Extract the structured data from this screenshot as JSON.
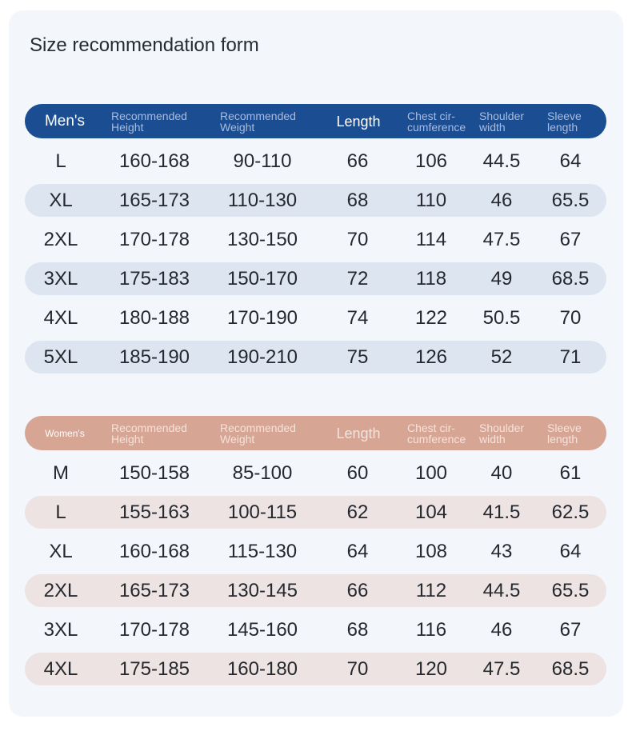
{
  "title": "Size recommendation form",
  "men": {
    "header": [
      "Men's",
      "Recommended Height",
      "Recommended Weight",
      "Length",
      "Chest cir-cumference",
      "Shoulder width",
      "Sleeve length"
    ],
    "rows": [
      [
        "L",
        "160-168",
        "90-110",
        "66",
        "106",
        "44.5",
        "64"
      ],
      [
        "XL",
        "165-173",
        "110-130",
        "68",
        "110",
        "46",
        "65.5"
      ],
      [
        "2XL",
        "170-178",
        "130-150",
        "70",
        "114",
        "47.5",
        "67"
      ],
      [
        "3XL",
        "175-183",
        "150-170",
        "72",
        "118",
        "49",
        "68.5"
      ],
      [
        "4XL",
        "180-188",
        "170-190",
        "74",
        "122",
        "50.5",
        "70"
      ],
      [
        "5XL",
        "185-190",
        "190-210",
        "75",
        "126",
        "52",
        "71"
      ]
    ]
  },
  "women": {
    "header": [
      "Women's",
      "Recommended Height",
      "Recommended Weight",
      "Length",
      "Chest cir-cumference",
      "Shoulder width",
      "Sleeve length"
    ],
    "rows": [
      [
        "M",
        "150-158",
        "85-100",
        "60",
        "100",
        "40",
        "61"
      ],
      [
        "L",
        "155-163",
        "100-115",
        "62",
        "104",
        "41.5",
        "62.5"
      ],
      [
        "XL",
        "160-168",
        "115-130",
        "64",
        "108",
        "43",
        "64"
      ],
      [
        "2XL",
        "165-173",
        "130-145",
        "66",
        "112",
        "44.5",
        "65.5"
      ],
      [
        "3XL",
        "170-178",
        "145-160",
        "68",
        "116",
        "46",
        "67"
      ],
      [
        "4XL",
        "175-185",
        "160-180",
        "70",
        "120",
        "47.5",
        "68.5"
      ]
    ]
  }
}
